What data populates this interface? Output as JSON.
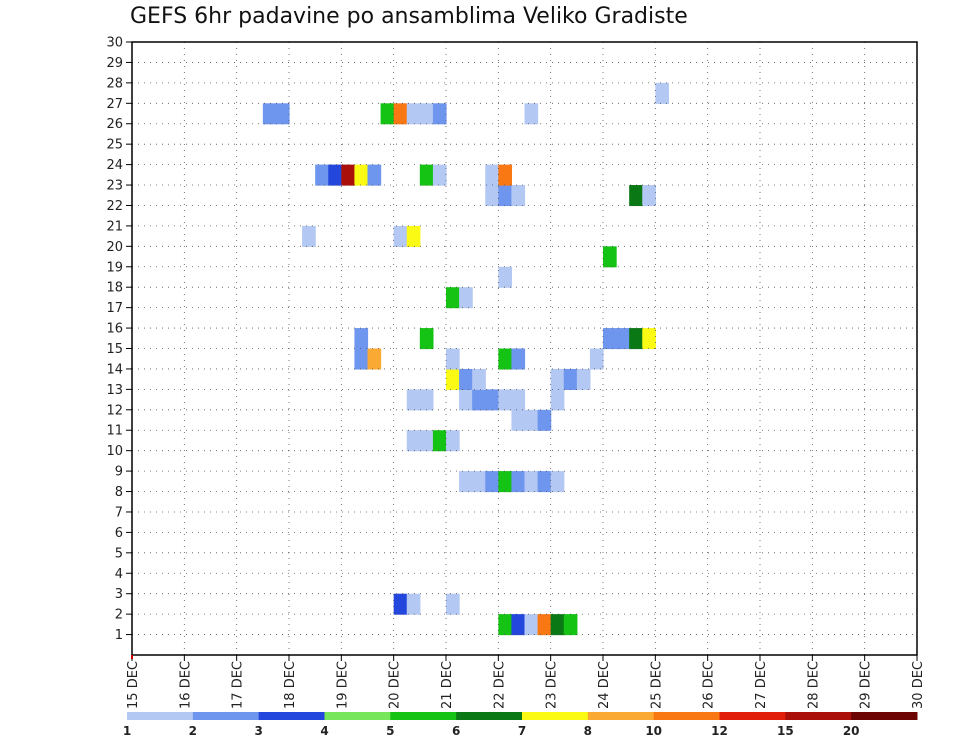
{
  "chart_data": {
    "type": "heatmap",
    "title": "GEFS 6hr padavine po ansamblima Veliko Gradiste",
    "xlabel": "",
    "ylabel": "",
    "x_ticks": [
      "15 DEC",
      "16 DEC",
      "17 DEC",
      "18 DEC",
      "19 DEC",
      "20 DEC",
      "21 DEC",
      "22 DEC",
      "23 DEC",
      "24 DEC",
      "25 DEC",
      "26 DEC",
      "27 DEC",
      "28 DEC",
      "29 DEC",
      "30 DEC"
    ],
    "x_range": [
      0,
      60
    ],
    "y_range": [
      0,
      30
    ],
    "y_ticks": [
      1,
      2,
      3,
      4,
      5,
      6,
      7,
      8,
      9,
      10,
      11,
      12,
      13,
      14,
      15,
      16,
      17,
      18,
      19,
      20,
      21,
      22,
      23,
      24,
      25,
      26,
      27,
      28,
      29,
      30
    ],
    "grid": true,
    "colorbar": {
      "labels": [
        "1",
        "2",
        "3",
        "4",
        "5",
        "6",
        "7",
        "8",
        "10",
        "12",
        "15",
        "20"
      ],
      "colors": [
        "#b4c8f4",
        "#6e96ee",
        "#2346dc",
        "#78e65a",
        "#14c314",
        "#0a7814",
        "#fafa14",
        "#faaa32",
        "#fa7814",
        "#e11e0a",
        "#aa0f0a",
        "#6e0505"
      ]
    },
    "cells_note": "x = 6-hour step index from 15 DEC 00Z, y = ensemble member, v = precipitation (mm/6h)",
    "cells": [
      {
        "x": 28,
        "y": 1,
        "v": 5
      },
      {
        "x": 29,
        "y": 1,
        "v": 3
      },
      {
        "x": 30,
        "y": 1,
        "v": 1
      },
      {
        "x": 31,
        "y": 1,
        "v": 10
      },
      {
        "x": 32,
        "y": 1,
        "v": 6
      },
      {
        "x": 33,
        "y": 1,
        "v": 5
      },
      {
        "x": 20,
        "y": 2,
        "v": 3
      },
      {
        "x": 21,
        "y": 2,
        "v": 1
      },
      {
        "x": 24,
        "y": 2,
        "v": 1
      },
      {
        "x": 25,
        "y": 8,
        "v": 1
      },
      {
        "x": 26,
        "y": 8,
        "v": 1
      },
      {
        "x": 27,
        "y": 8,
        "v": 2
      },
      {
        "x": 28,
        "y": 8,
        "v": 5
      },
      {
        "x": 29,
        "y": 8,
        "v": 2
      },
      {
        "x": 30,
        "y": 8,
        "v": 1
      },
      {
        "x": 31,
        "y": 8,
        "v": 2
      },
      {
        "x": 32,
        "y": 8,
        "v": 1
      },
      {
        "x": 21,
        "y": 10,
        "v": 1
      },
      {
        "x": 22,
        "y": 10,
        "v": 1
      },
      {
        "x": 23,
        "y": 10,
        "v": 5
      },
      {
        "x": 24,
        "y": 10,
        "v": 1
      },
      {
        "x": 29,
        "y": 11,
        "v": 1
      },
      {
        "x": 30,
        "y": 11,
        "v": 1
      },
      {
        "x": 31,
        "y": 11,
        "v": 2
      },
      {
        "x": 21,
        "y": 12,
        "v": 1
      },
      {
        "x": 22,
        "y": 12,
        "v": 1
      },
      {
        "x": 25,
        "y": 12,
        "v": 1
      },
      {
        "x": 26,
        "y": 12,
        "v": 2
      },
      {
        "x": 27,
        "y": 12,
        "v": 2
      },
      {
        "x": 28,
        "y": 12,
        "v": 1
      },
      {
        "x": 29,
        "y": 12,
        "v": 1
      },
      {
        "x": 32,
        "y": 12,
        "v": 1
      },
      {
        "x": 24,
        "y": 13,
        "v": 7
      },
      {
        "x": 25,
        "y": 13,
        "v": 2
      },
      {
        "x": 26,
        "y": 13,
        "v": 1
      },
      {
        "x": 32,
        "y": 13,
        "v": 1
      },
      {
        "x": 33,
        "y": 13,
        "v": 2
      },
      {
        "x": 34,
        "y": 13,
        "v": 1
      },
      {
        "x": 17,
        "y": 14,
        "v": 2
      },
      {
        "x": 18,
        "y": 14,
        "v": 8
      },
      {
        "x": 24,
        "y": 14,
        "v": 1
      },
      {
        "x": 28,
        "y": 14,
        "v": 5
      },
      {
        "x": 29,
        "y": 14,
        "v": 2
      },
      {
        "x": 35,
        "y": 14,
        "v": 1
      },
      {
        "x": 17,
        "y": 15,
        "v": 2
      },
      {
        "x": 22,
        "y": 15,
        "v": 5
      },
      {
        "x": 36,
        "y": 15,
        "v": 2
      },
      {
        "x": 37,
        "y": 15,
        "v": 2
      },
      {
        "x": 38,
        "y": 15,
        "v": 6
      },
      {
        "x": 39,
        "y": 15,
        "v": 7
      },
      {
        "x": 24,
        "y": 17,
        "v": 5
      },
      {
        "x": 25,
        "y": 17,
        "v": 1
      },
      {
        "x": 28,
        "y": 18,
        "v": 1
      },
      {
        "x": 36,
        "y": 19,
        "v": 5
      },
      {
        "x": 13,
        "y": 20,
        "v": 1
      },
      {
        "x": 20,
        "y": 20,
        "v": 1
      },
      {
        "x": 21,
        "y": 20,
        "v": 7
      },
      {
        "x": 27,
        "y": 22,
        "v": 1
      },
      {
        "x": 28,
        "y": 22,
        "v": 2
      },
      {
        "x": 29,
        "y": 22,
        "v": 1
      },
      {
        "x": 38,
        "y": 22,
        "v": 6
      },
      {
        "x": 39,
        "y": 22,
        "v": 1
      },
      {
        "x": 14,
        "y": 23,
        "v": 2
      },
      {
        "x": 15,
        "y": 23,
        "v": 3
      },
      {
        "x": 16,
        "y": 23,
        "v": 15
      },
      {
        "x": 17,
        "y": 23,
        "v": 7
      },
      {
        "x": 18,
        "y": 23,
        "v": 2
      },
      {
        "x": 22,
        "y": 23,
        "v": 5
      },
      {
        "x": 23,
        "y": 23,
        "v": 1
      },
      {
        "x": 27,
        "y": 23,
        "v": 1
      },
      {
        "x": 28,
        "y": 23,
        "v": 10
      },
      {
        "x": 10,
        "y": 26,
        "v": 2
      },
      {
        "x": 11,
        "y": 26,
        "v": 2
      },
      {
        "x": 19,
        "y": 26,
        "v": 5
      },
      {
        "x": 20,
        "y": 26,
        "v": 10
      },
      {
        "x": 21,
        "y": 26,
        "v": 1
      },
      {
        "x": 22,
        "y": 26,
        "v": 1
      },
      {
        "x": 23,
        "y": 26,
        "v": 2
      },
      {
        "x": 30,
        "y": 26,
        "v": 1
      },
      {
        "x": 40,
        "y": 27,
        "v": 1
      }
    ]
  }
}
